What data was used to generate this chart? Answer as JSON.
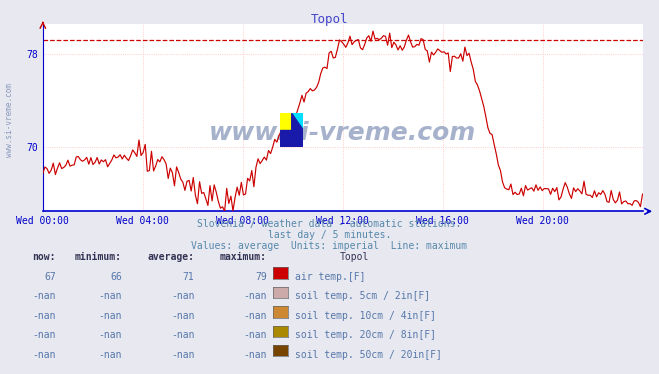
{
  "title": "Topol",
  "title_color": "#4444cc",
  "bg_color": "#e8e8f0",
  "plot_bg_color": "#ffffff",
  "grid_color": "#ffbbbb",
  "axis_color": "#0000cc",
  "line_color": "#cc0000",
  "dashed_line_color": "#cc0000",
  "dashed_line_value": 79.2,
  "ylim_min": 64.5,
  "ylim_max": 80.5,
  "ytick_values": [
    70,
    78
  ],
  "xtick_positions": [
    0,
    4,
    8,
    12,
    16,
    20
  ],
  "xtick_labels": [
    "Wed 00:00",
    "Wed 04:00",
    "Wed 08:00",
    "Wed 12:00",
    "Wed 16:00",
    "Wed 20:00"
  ],
  "subtitle1": "Slovenia / weather data - automatic stations.",
  "subtitle2": "last day / 5 minutes.",
  "subtitle3": "Values: average  Units: imperial  Line: maximum",
  "subtitle_color": "#5588aa",
  "watermark": "www.si-vreme.com",
  "watermark_color": "#8899bb",
  "table_headers": [
    "now:",
    "minimum:",
    "average:",
    "maximum:",
    "Topol"
  ],
  "table_row1": [
    "67",
    "66",
    "71",
    "79",
    "air temp.[F]"
  ],
  "table_row2": [
    "-nan",
    "-nan",
    "-nan",
    "-nan",
    "soil temp. 5cm / 2in[F]"
  ],
  "table_row3": [
    "-nan",
    "-nan",
    "-nan",
    "-nan",
    "soil temp. 10cm / 4in[F]"
  ],
  "table_row4": [
    "-nan",
    "-nan",
    "-nan",
    "-nan",
    "soil temp. 20cm / 8in[F]"
  ],
  "table_row5": [
    "-nan",
    "-nan",
    "-nan",
    "-nan",
    "soil temp. 50cm / 20in[F]"
  ],
  "legend_colors": [
    "#cc0000",
    "#ccaaaa",
    "#cc8833",
    "#aa8800",
    "#774400"
  ],
  "yaxis_label": "www.si-vreme.com",
  "num_points": 288
}
